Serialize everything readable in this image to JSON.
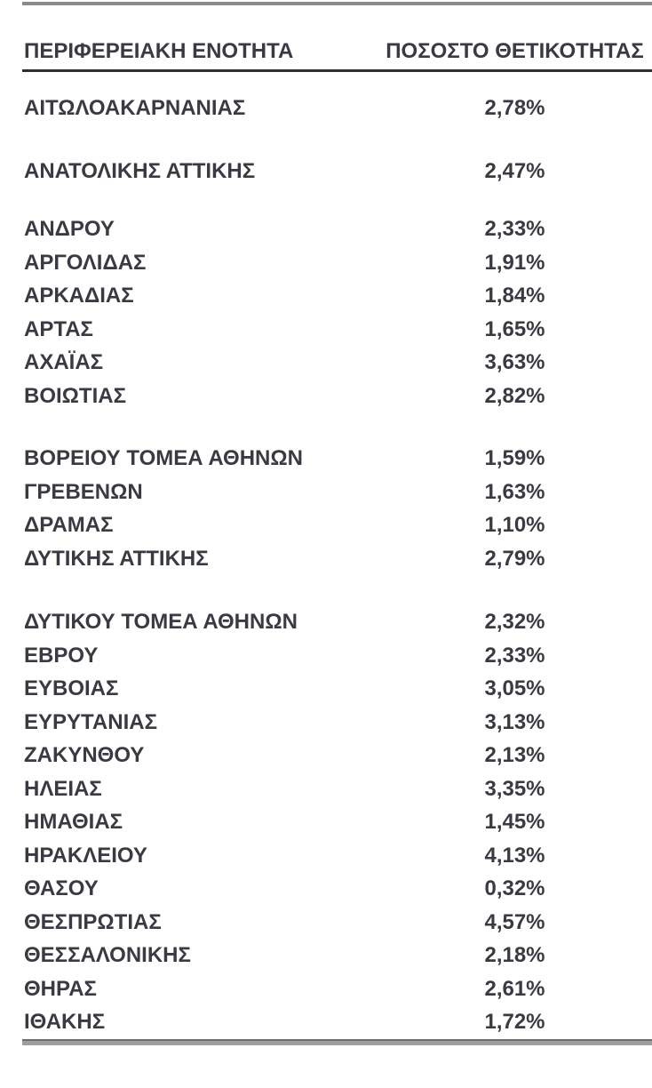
{
  "colors": {
    "text": "#3a3a42",
    "top_border": "#8a8a8a",
    "header_underline": "#2f2f2f",
    "bottom_border": "#9e9e9e",
    "background": "#ffffff"
  },
  "table": {
    "columns": {
      "region": "ΠΕΡΙΦΕΡΕΙΑΚΗ ΕΝΟΤΗΤΑ",
      "positivity": "ΠΟΣΟΣΤΟ ΘΕΤΙΚΟΤΗΤΑΣ"
    },
    "groups": [
      {
        "rows": [
          {
            "region": "ΑΙΤΩΛΟΑΚΑΡΝΑΝΙΑΣ",
            "positivity": "2,78%"
          }
        ]
      },
      {
        "rows": [
          {
            "region": "ΑΝΑΤΟΛΙΚΗΣ ΑΤΤΙΚΗΣ",
            "positivity": "2,47%"
          }
        ]
      },
      {
        "rows": [
          {
            "region": "ΑΝΔΡΟΥ",
            "positivity": "2,33%"
          },
          {
            "region": "ΑΡΓΟΛΙΔΑΣ",
            "positivity": "1,91%"
          },
          {
            "region": "ΑΡΚΑΔΙΑΣ",
            "positivity": "1,84%"
          },
          {
            "region": "ΑΡΤΑΣ",
            "positivity": "1,65%"
          },
          {
            "region": "ΑΧΑΪΑΣ",
            "positivity": "3,63%"
          },
          {
            "region": "ΒΟΙΩΤΙΑΣ",
            "positivity": "2,82%"
          }
        ]
      },
      {
        "rows": [
          {
            "region": "ΒΟΡΕΙΟΥ ΤΟΜΕΑ ΑΘΗΝΩΝ",
            "positivity": "1,59%"
          },
          {
            "region": "ΓΡΕΒΕΝΩΝ",
            "positivity": "1,63%"
          },
          {
            "region": "ΔΡΑΜΑΣ",
            "positivity": "1,10%"
          },
          {
            "region": "ΔΥΤΙΚΗΣ ΑΤΤΙΚΗΣ",
            "positivity": "2,79%"
          }
        ]
      },
      {
        "rows": [
          {
            "region": "ΔΥΤΙΚΟΥ ΤΟΜΕΑ ΑΘΗΝΩΝ",
            "positivity": "2,32%"
          },
          {
            "region": "ΕΒΡΟΥ",
            "positivity": "2,33%"
          },
          {
            "region": "ΕΥΒΟΙΑΣ",
            "positivity": "3,05%"
          },
          {
            "region": "ΕΥΡΥΤΑΝΙΑΣ",
            "positivity": "3,13%"
          },
          {
            "region": "ΖΑΚΥΝΘΟΥ",
            "positivity": "2,13%"
          },
          {
            "region": "ΗΛΕΙΑΣ",
            "positivity": "3,35%"
          },
          {
            "region": "ΗΜΑΘΙΑΣ",
            "positivity": "1,45%"
          },
          {
            "region": "ΗΡΑΚΛΕΙΟΥ",
            "positivity": "4,13%"
          },
          {
            "region": "ΘΑΣΟΥ",
            "positivity": "0,32%"
          },
          {
            "region": "ΘΕΣΠΡΩΤΙΑΣ",
            "positivity": "4,57%"
          },
          {
            "region": "ΘΕΣΣΑΛΟΝΙΚΗΣ",
            "positivity": "2,18%"
          },
          {
            "region": "ΘΗΡΑΣ",
            "positivity": "2,61%"
          },
          {
            "region": "ΙΘΑΚΗΣ",
            "positivity": "1,72%"
          }
        ]
      }
    ]
  },
  "chart_data": {
    "type": "table",
    "title": "",
    "columns": [
      "ΠΕΡΙΦΕΡΕΙΑΚΗ ΕΝΟΤΗΤΑ",
      "ΠΟΣΟΣΤΟ ΘΕΤΙΚΟΤΗΤΑΣ"
    ],
    "categories": [
      "ΑΙΤΩΛΟΑΚΑΡΝΑΝΙΑΣ",
      "ΑΝΑΤΟΛΙΚΗΣ ΑΤΤΙΚΗΣ",
      "ΑΝΔΡΟΥ",
      "ΑΡΓΟΛΙΔΑΣ",
      "ΑΡΚΑΔΙΑΣ",
      "ΑΡΤΑΣ",
      "ΑΧΑΪΑΣ",
      "ΒΟΙΩΤΙΑΣ",
      "ΒΟΡΕΙΟΥ ΤΟΜΕΑ ΑΘΗΝΩΝ",
      "ΓΡΕΒΕΝΩΝ",
      "ΔΡΑΜΑΣ",
      "ΔΥΤΙΚΗΣ ΑΤΤΙΚΗΣ",
      "ΔΥΤΙΚΟΥ ΤΟΜΕΑ ΑΘΗΝΩΝ",
      "ΕΒΡΟΥ",
      "ΕΥΒΟΙΑΣ",
      "ΕΥΡΥΤΑΝΙΑΣ",
      "ΖΑΚΥΝΘΟΥ",
      "ΗΛΕΙΑΣ",
      "ΗΜΑΘΙΑΣ",
      "ΗΡΑΚΛΕΙΟΥ",
      "ΘΑΣΟΥ",
      "ΘΕΣΠΡΩΤΙΑΣ",
      "ΘΕΣΣΑΛΟΝΙΚΗΣ",
      "ΘΗΡΑΣ",
      "ΙΘΑΚΗΣ"
    ],
    "values_percent": [
      2.78,
      2.47,
      2.33,
      1.91,
      1.84,
      1.65,
      3.63,
      2.82,
      1.59,
      1.63,
      1.1,
      2.79,
      2.32,
      2.33,
      3.05,
      3.13,
      2.13,
      3.35,
      1.45,
      4.13,
      0.32,
      4.57,
      2.18,
      2.61,
      1.72
    ]
  }
}
